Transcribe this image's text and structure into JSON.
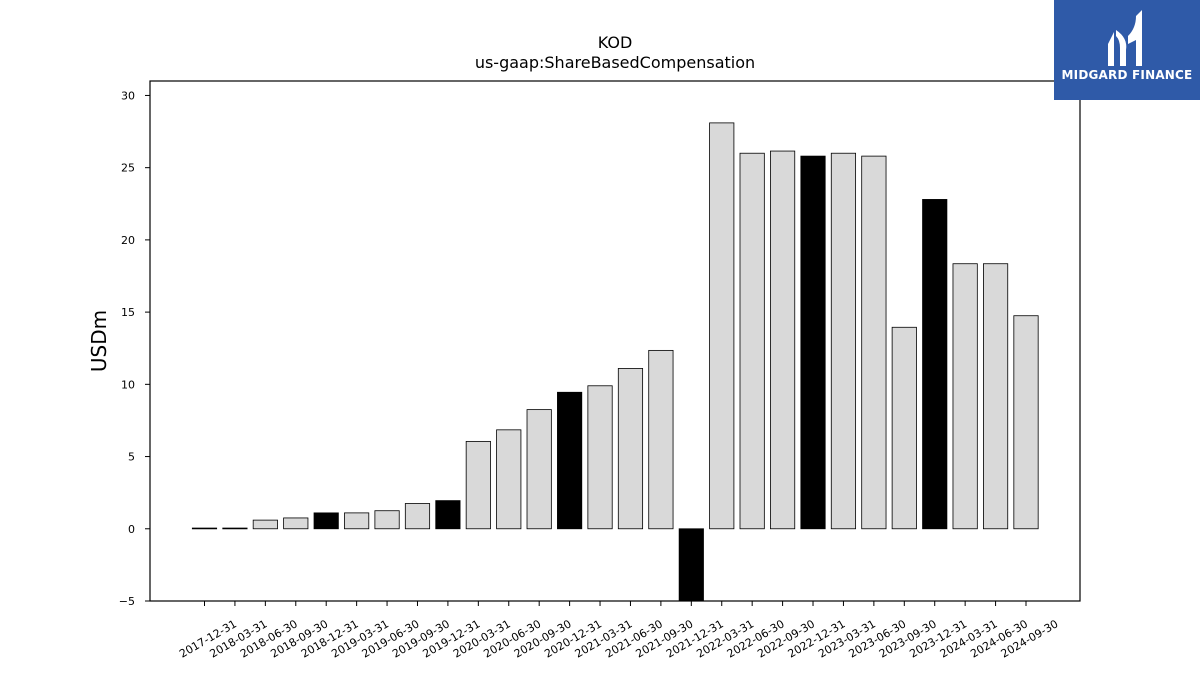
{
  "chart_data": {
    "type": "bar",
    "title": "KOD",
    "subtitle": "us-gaap:ShareBasedCompensation",
    "xlabel": "",
    "ylabel": "USDm",
    "ylim": [
      -5,
      31
    ],
    "yticks": [
      -5,
      0,
      5,
      10,
      15,
      20,
      25,
      30
    ],
    "categories": [
      "2017-12-31",
      "2018-03-31",
      "2018-06-30",
      "2018-09-30",
      "2018-12-31",
      "2019-03-31",
      "2019-06-30",
      "2019-09-30",
      "2019-12-31",
      "2020-03-31",
      "2020-06-30",
      "2020-09-30",
      "2020-12-31",
      "2021-03-31",
      "2021-06-30",
      "2021-09-30",
      "2021-12-31",
      "2022-03-31",
      "2022-06-30",
      "2022-09-30",
      "2022-12-31",
      "2023-03-31",
      "2023-06-30",
      "2023-09-30",
      "2023-12-31",
      "2024-03-31",
      "2024-06-30",
      "2024-09-30"
    ],
    "values": [
      0.05,
      0.05,
      0.6,
      0.75,
      1.1,
      1.1,
      1.25,
      1.75,
      1.95,
      6.05,
      6.85,
      8.25,
      9.45,
      9.9,
      11.1,
      12.35,
      -5.2,
      28.1,
      26.0,
      26.15,
      25.8,
      26.0,
      25.8,
      13.95,
      22.8,
      18.35,
      18.35,
      14.75
    ],
    "fiscal_year_end": [
      false,
      false,
      false,
      false,
      true,
      false,
      false,
      false,
      true,
      false,
      false,
      false,
      true,
      false,
      false,
      false,
      true,
      false,
      false,
      false,
      true,
      false,
      false,
      false,
      true,
      false,
      false,
      false
    ],
    "colors": {
      "bar": "#d9d9d9",
      "bar_highlight": "#000000",
      "edge": "#000000"
    },
    "grid": false
  },
  "logo": {
    "text": "MIDGARD FINANCE",
    "background": "#2f5aa8"
  }
}
